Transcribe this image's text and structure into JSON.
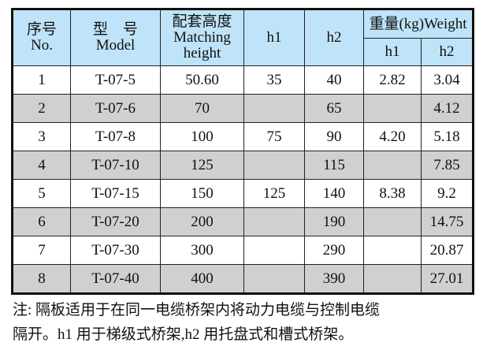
{
  "header": {
    "no_cn": "序号",
    "no_en": "No.",
    "model_cn": "型　号",
    "model_en": "Model",
    "height_cn": "配套高度",
    "height_en1": "Matching",
    "height_en2": "height",
    "h1": "h1",
    "h2": "h2",
    "weight": "重量(kg)Weight",
    "w_h1": "h1",
    "w_h2": "h2"
  },
  "rows": [
    {
      "no": "1",
      "model": "T-07-5",
      "height": "50.60",
      "h1": "35",
      "h2": "40",
      "w1": "2.82",
      "w2": "3.04"
    },
    {
      "no": "2",
      "model": "T-07-6",
      "height": "70",
      "h1": "",
      "h2": "65",
      "w1": "",
      "w2": "4.12"
    },
    {
      "no": "3",
      "model": "T-07-8",
      "height": "100",
      "h1": "75",
      "h2": "90",
      "w1": "4.20",
      "w2": "5.18"
    },
    {
      "no": "4",
      "model": "T-07-10",
      "height": "125",
      "h1": "",
      "h2": "115",
      "w1": "",
      "w2": "7.85"
    },
    {
      "no": "5",
      "model": "T-07-15",
      "height": "150",
      "h1": "125",
      "h2": "140",
      "w1": "8.38",
      "w2": "9.2"
    },
    {
      "no": "6",
      "model": "T-07-20",
      "height": "200",
      "h1": "",
      "h2": "190",
      "w1": "",
      "w2": "14.75"
    },
    {
      "no": "7",
      "model": "T-07-30",
      "height": "300",
      "h1": "",
      "h2": "290",
      "w1": "",
      "w2": "20.87"
    },
    {
      "no": "8",
      "model": "T-07-40",
      "height": "400",
      "h1": "",
      "h2": "390",
      "w1": "",
      "w2": "27.01"
    }
  ],
  "colors": {
    "header_bg": "#bfe3f8",
    "alt_row_bg": "#d0d0d0"
  },
  "note": {
    "line1": "注: 隔板适用于在同一电缆桥架内将动力电缆与控制电缆",
    "line2": "隔开。h1 用于梯级式桥架,h2 用托盘式和槽式桥架。"
  }
}
